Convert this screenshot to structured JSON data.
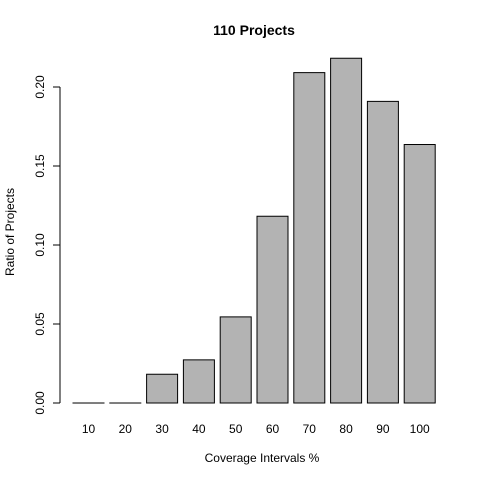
{
  "chart_data": {
    "type": "bar",
    "title": "110 Projects",
    "xlabel": "Coverage Intervals %",
    "ylabel": "Ratio of Projects",
    "categories": [
      "10",
      "20",
      "30",
      "40",
      "50",
      "60",
      "70",
      "80",
      "90",
      "100"
    ],
    "values": [
      0.0,
      0.0,
      0.0182,
      0.0273,
      0.0545,
      0.1182,
      0.2091,
      0.2182,
      0.1909,
      0.1636
    ],
    "ylim": [
      0,
      0.22
    ],
    "yticks": [
      "0.00",
      "0.05",
      "0.10",
      "0.15",
      "0.20"
    ],
    "grid": false,
    "bar_color": "#b3b3b3"
  }
}
